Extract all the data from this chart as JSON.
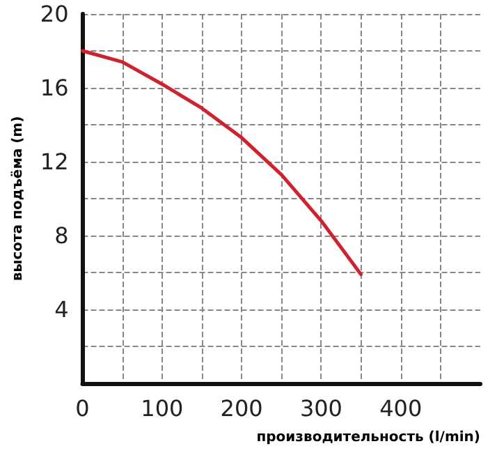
{
  "chart_data": {
    "type": "line",
    "xlabel": "производительность (l/min)",
    "ylabel": "высота подъёма (m)",
    "x": [
      0,
      50,
      100,
      150,
      200,
      250,
      300,
      350
    ],
    "series": [
      {
        "color": "#d0212f",
        "values": [
          18,
          17.4,
          16.2,
          14.9,
          13.3,
          11.3,
          8.8,
          5.9
        ]
      }
    ],
    "xlim": [
      0,
      500
    ],
    "ylim": [
      0,
      20
    ],
    "xticks": [
      0,
      {
        "value": 50,
        "label": null
      },
      100,
      {
        "value": 150,
        "label": null
      },
      200,
      {
        "value": 250,
        "label": null
      },
      300,
      {
        "value": 350,
        "label": null
      },
      400,
      {
        "value": 450,
        "label": null
      }
    ],
    "yticks": [
      {
        "value": 2,
        "label": null
      },
      4,
      {
        "value": 6,
        "label": null
      },
      8,
      {
        "value": 10,
        "label": null
      },
      12,
      {
        "value": 14,
        "label": null
      },
      16,
      {
        "value": 18,
        "label": null
      },
      20
    ],
    "grid": true,
    "marker": "none",
    "line_style": "solid"
  }
}
